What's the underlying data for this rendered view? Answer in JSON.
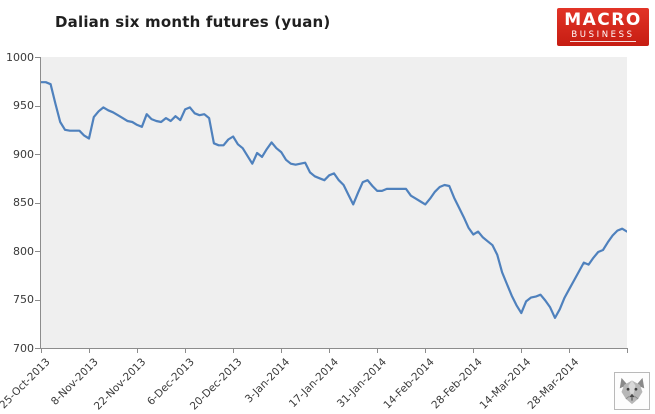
{
  "header": {
    "title": "Dalian six month futures (yuan)",
    "logo": {
      "line1": "MACRO",
      "line2": "BUSINESS",
      "bg_color_top": "#e23427",
      "bg_color_bottom": "#c61d12",
      "text_color": "#ffffff"
    }
  },
  "footer": {
    "wolf_icon_name": "wolf-face-logo"
  },
  "style_colors": {
    "title_color": "#1f1f1f",
    "axis_color": "#8c8c8c",
    "label_color": "#3a3a3a",
    "series_color": "#4F81BD",
    "plot_background": "#efefef",
    "page_background": "#ffffff"
  },
  "chart_data": {
    "type": "line",
    "title": "Dalian six month futures (yuan)",
    "grid": false,
    "legend": false,
    "ylim": [
      700,
      1000
    ],
    "y_ticks": [
      1000,
      950,
      900,
      850,
      800,
      750,
      700
    ],
    "x_tick_labels": [
      "25-Oct-2013",
      "8-Nov-2013",
      "22-Nov-2013",
      "6-Dec-2013",
      "20-Dec-2013",
      "3-Jan-2014",
      "17-Jan-2014",
      "31-Jan-2014",
      "14-Feb-2014",
      "28-Feb-2014",
      "14-Mar-2014",
      "28-Mar-2014"
    ],
    "x_tick_every_n_points": 10,
    "frequency": "daily (weekday) closes, estimated from plot",
    "start_label": "25-Oct-2013",
    "values": [
      974,
      974,
      972,
      952,
      933,
      925,
      924,
      924,
      924,
      919,
      916,
      938,
      944,
      948,
      945,
      943,
      940,
      937,
      934,
      933,
      930,
      928,
      941,
      936,
      934,
      933,
      937,
      934,
      939,
      935,
      946,
      948,
      942,
      940,
      941,
      937,
      911,
      909,
      909,
      915,
      918,
      910,
      906,
      898,
      890,
      901,
      897,
      905,
      912,
      906,
      902,
      894,
      890,
      889,
      890,
      891,
      881,
      877,
      875,
      873,
      878,
      880,
      873,
      868,
      858,
      848,
      860,
      871,
      873,
      867,
      862,
      862,
      864,
      864,
      864,
      864,
      864,
      857,
      854,
      851,
      848,
      854,
      861,
      866,
      868,
      867,
      855,
      845,
      835,
      824,
      817,
      820,
      814,
      810,
      806,
      796,
      778,
      766,
      754,
      744,
      736,
      748,
      752,
      753,
      755,
      749,
      742,
      731,
      740,
      752,
      761,
      770,
      779,
      788,
      786,
      793,
      799,
      801,
      809,
      816,
      821,
      823,
      820
    ]
  }
}
